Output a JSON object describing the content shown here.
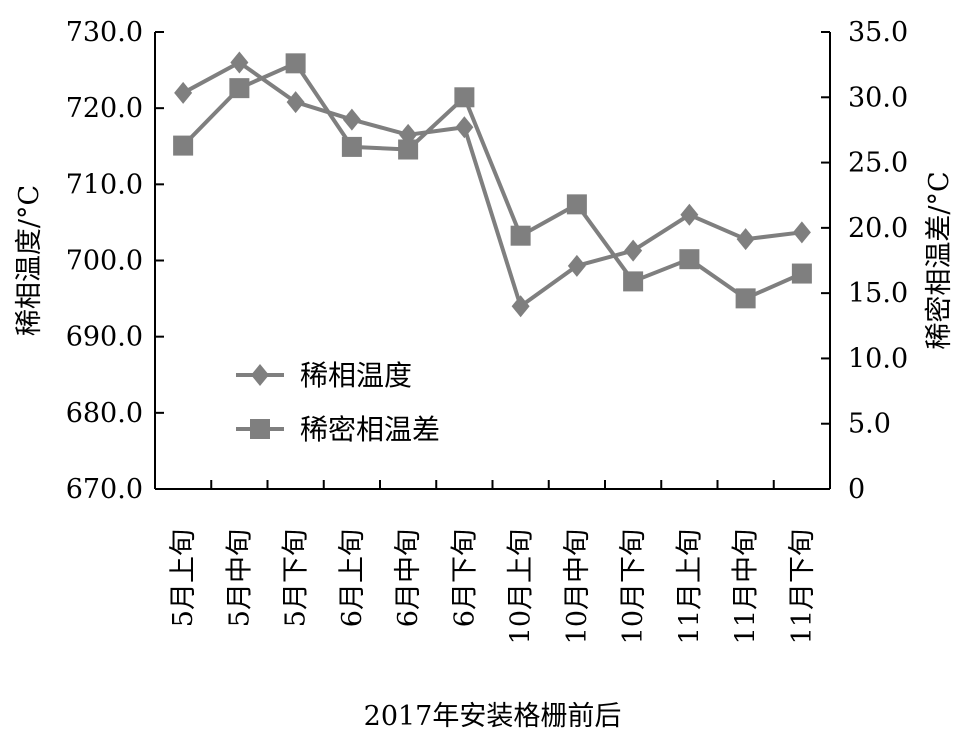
{
  "chart_data": {
    "type": "line",
    "xlabel": "2017年安装格栅前后",
    "categories": [
      "5月上旬",
      "5月中旬",
      "5月下旬",
      "6月上旬",
      "6月中旬",
      "6月下旬",
      "10月上旬",
      "10月中旬",
      "10月下旬",
      "11月上旬",
      "11月中旬",
      "11月下旬"
    ],
    "y_left": {
      "label": "稀相温度/°C",
      "ylim": [
        670,
        730
      ],
      "ticks": [
        "670.0",
        "680.0",
        "690.0",
        "700.0",
        "710.0",
        "720.0",
        "730.0"
      ]
    },
    "y_right": {
      "label": "稀密相温差/°C",
      "ylim": [
        0,
        35
      ],
      "ticks": [
        "0",
        "5.0",
        "10.0",
        "15.0",
        "20.0",
        "25.0",
        "30.0",
        "35.0"
      ]
    },
    "series": [
      {
        "name": "稀相温度",
        "axis": "left",
        "marker": "diamond",
        "color": "#7f7f7f",
        "values": [
          722.0,
          726.0,
          720.8,
          718.5,
          716.5,
          717.5,
          694.0,
          699.3,
          701.3,
          706.0,
          702.8,
          703.7
        ]
      },
      {
        "name": "稀密相温差",
        "axis": "right",
        "marker": "square",
        "color": "#7f7f7f",
        "values": [
          26.3,
          30.7,
          32.6,
          26.2,
          26.0,
          30.0,
          19.4,
          21.8,
          15.9,
          17.6,
          14.6,
          16.5
        ]
      }
    ],
    "legend": "center-left",
    "grid": false
  }
}
